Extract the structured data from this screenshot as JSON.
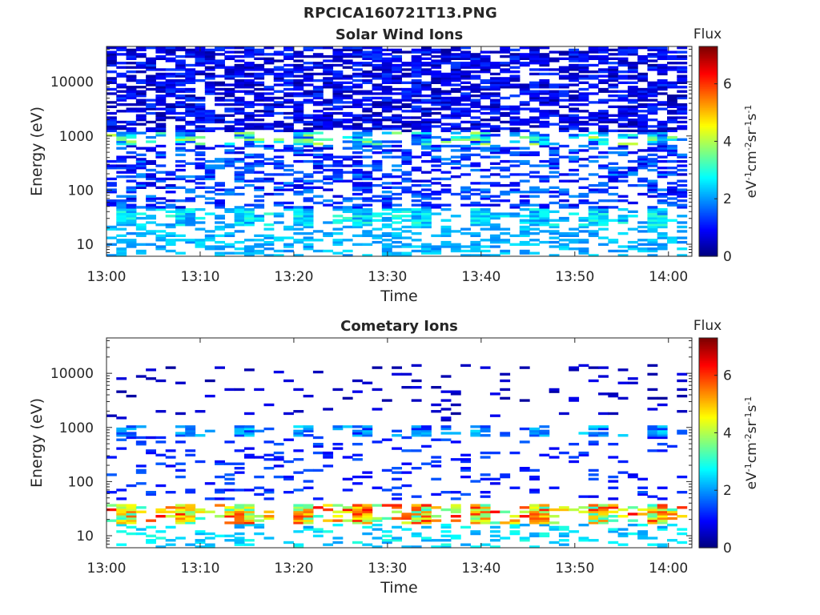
{
  "figure": {
    "file_title": "RPCICA160721T13.PNG"
  },
  "chart_data": [
    {
      "type": "heatmap",
      "title": "Solar Wind Ions",
      "xlabel": "Time",
      "ylabel": "Energy (eV)",
      "yscale": "log",
      "ylim": [
        6,
        45000
      ],
      "xlim": [
        "13:00",
        "14:02.5"
      ],
      "x_ticks": [
        "13:00",
        "13:10",
        "13:20",
        "13:30",
        "13:40",
        "13:50",
        "14:00"
      ],
      "y_ticks": [
        "10",
        "100",
        "1000",
        "10000"
      ],
      "colorbar": {
        "title": "Flux",
        "label": "eV-1cm-2sr-1s-1",
        "range": [
          0,
          7.3
        ],
        "ticks": [
          "0",
          "2",
          "4",
          "6"
        ],
        "colormap": "jet"
      },
      "bands": [
        {
          "e_lo": 1200,
          "e_hi": 45000,
          "density": 0.62,
          "fmin": 0.2,
          "fmax": 1.4
        },
        {
          "e_lo": 700,
          "e_hi": 1200,
          "density": 0.55,
          "fmin": 1.0,
          "fmax": 4.2,
          "periodic": true
        },
        {
          "e_lo": 45,
          "e_hi": 700,
          "density": 0.42,
          "fmin": 0.6,
          "fmax": 2.0
        },
        {
          "e_lo": 22,
          "e_hi": 45,
          "density": 0.75,
          "fmin": 1.8,
          "fmax": 3.2,
          "periodic": true
        },
        {
          "e_lo": 6,
          "e_hi": 22,
          "density": 0.38,
          "fmin": 1.8,
          "fmax": 2.6
        }
      ]
    },
    {
      "type": "heatmap",
      "title": "Cometary Ions",
      "xlabel": "Time",
      "ylabel": "Energy (eV)",
      "yscale": "log",
      "ylim": [
        6,
        45000
      ],
      "xlim": [
        "13:00",
        "14:02.5"
      ],
      "x_ticks": [
        "13:00",
        "13:10",
        "13:20",
        "13:30",
        "13:40",
        "13:50",
        "14:00"
      ],
      "y_ticks": [
        "10",
        "100",
        "1000",
        "10000"
      ],
      "colorbar": {
        "title": "Flux",
        "label": "eV-1cm-2sr-1s-1",
        "range": [
          0,
          7.3
        ],
        "ticks": [
          "0",
          "2",
          "4",
          "6"
        ],
        "colormap": "jet"
      },
      "bands": [
        {
          "e_lo": 1300,
          "e_hi": 15000,
          "density": 0.05,
          "fmin": 0.2,
          "fmax": 0.8
        },
        {
          "e_lo": 700,
          "e_hi": 1100,
          "density": 0.5,
          "fmin": 1.0,
          "fmax": 2.6,
          "periodic": true
        },
        {
          "e_lo": 45,
          "e_hi": 700,
          "density": 0.12,
          "fmin": 0.8,
          "fmax": 1.6
        },
        {
          "e_lo": 17,
          "e_hi": 40,
          "density": 0.92,
          "fmin": 3.0,
          "fmax": 6.4,
          "periodic": true
        },
        {
          "e_lo": 6,
          "e_hi": 17,
          "density": 0.25,
          "fmin": 2.0,
          "fmax": 3.0
        }
      ]
    }
  ]
}
